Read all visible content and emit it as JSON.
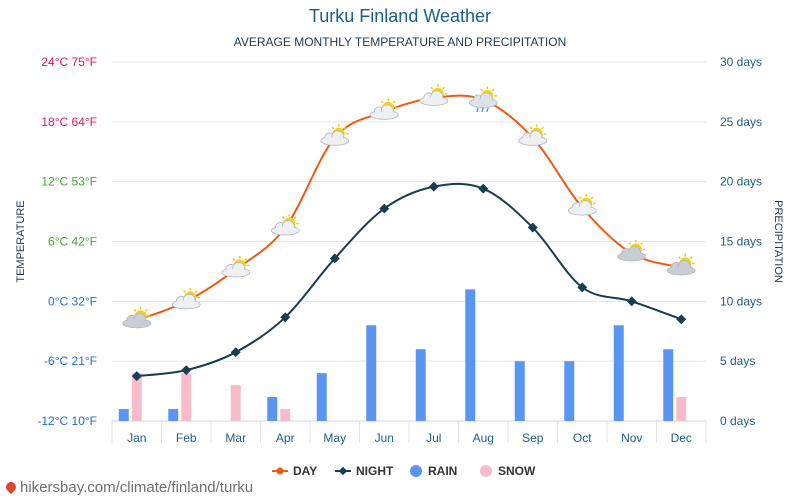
{
  "header": {
    "title": "Turku Finland Weather",
    "subtitle": "AVERAGE MONTHLY TEMPERATURE AND PRECIPITATION"
  },
  "source": "hikersbay.com/climate/finland/turku",
  "colors": {
    "day": "#f05a14",
    "night": "#173d52",
    "rain": "#5b95f2",
    "snow": "#f7bccb",
    "right_axis": "#1f5f84",
    "grid": "#e6e6e6"
  },
  "chart_data": {
    "type": "line",
    "title": "Turku Finland Weather",
    "subtitle": "AVERAGE MONTHLY TEMPERATURE AND PRECIPITATION",
    "categories": [
      "Jan",
      "Feb",
      "Mar",
      "Apr",
      "May",
      "Jun",
      "Jul",
      "Aug",
      "Sep",
      "Oct",
      "Nov",
      "Dec"
    ],
    "ylabel": "TEMPERATURE",
    "y2label": "PRECIPITATION",
    "ylim": [
      -12,
      24
    ],
    "y2lim": [
      0,
      30
    ],
    "y_ticks": [
      {
        "value": 24,
        "label": "24°C 75°F",
        "color": "#e0185c"
      },
      {
        "value": 18,
        "label": "18°C 64°F",
        "color": "#e0185c"
      },
      {
        "value": 12,
        "label": "12°C 53°F",
        "color": "#3fae2b"
      },
      {
        "value": 6,
        "label": "6°C 42°F",
        "color": "#3fae2b"
      },
      {
        "value": 0,
        "label": "0°C 32°F",
        "color": "#1e6fd6"
      },
      {
        "value": -6,
        "label": "-6°C 21°F",
        "color": "#1e6fd6"
      },
      {
        "value": -12,
        "label": "-12°C 10°F",
        "color": "#1e6fd6"
      }
    ],
    "y2_ticks": [
      {
        "value": 30,
        "label": "30 days"
      },
      {
        "value": 25,
        "label": "25 days"
      },
      {
        "value": 20,
        "label": "20 days"
      },
      {
        "value": 15,
        "label": "15 days"
      },
      {
        "value": 10,
        "label": "10 days"
      },
      {
        "value": 5,
        "label": "5 days"
      },
      {
        "value": 0,
        "label": "0 days"
      }
    ],
    "series": [
      {
        "name": "DAY",
        "kind": "line",
        "axis": "left",
        "values": [
          -1.9,
          0.0,
          3.2,
          7.4,
          16.4,
          19.0,
          20.4,
          20.2,
          16.4,
          9.4,
          4.8,
          3.4
        ]
      },
      {
        "name": "NIGHT",
        "kind": "line",
        "axis": "left",
        "values": [
          -7.5,
          -6.9,
          -5.1,
          -1.6,
          4.3,
          9.3,
          11.5,
          11.3,
          7.4,
          1.4,
          0.0,
          -1.8
        ]
      },
      {
        "name": "RAIN",
        "kind": "bar",
        "axis": "right",
        "values": [
          1,
          1,
          0,
          2,
          4,
          8,
          6,
          11,
          5,
          5,
          8,
          6
        ]
      },
      {
        "name": "SNOW",
        "kind": "bar",
        "axis": "right",
        "values": [
          4,
          4,
          3,
          1,
          0,
          0,
          0,
          0,
          0,
          0,
          0,
          2
        ]
      }
    ],
    "weather_icons": [
      "partly-cloudy",
      "partly-sunny",
      "partly-sunny",
      "partly-sunny",
      "partly-sunny",
      "partly-sunny",
      "partly-sunny",
      "rain-sun",
      "partly-sunny",
      "partly-sunny",
      "partly-cloudy",
      "partly-cloudy"
    ],
    "legend": [
      "DAY",
      "NIGHT",
      "RAIN",
      "SNOW"
    ],
    "legend_position": "bottom",
    "grid": true
  }
}
